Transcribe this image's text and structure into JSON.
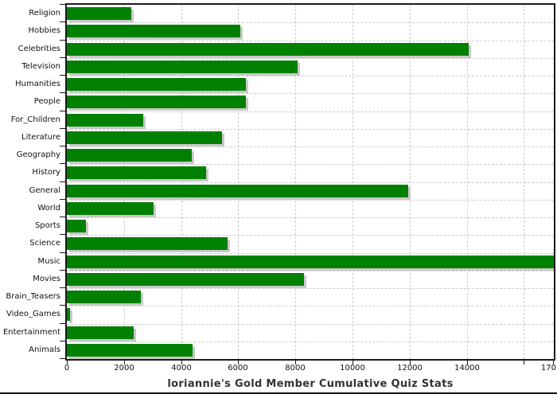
{
  "chart_data": {
    "type": "bar",
    "orientation": "horizontal",
    "title": "loriannie's Gold Member Cumulative Quiz Stats",
    "categories": [
      "Religion",
      "Hobbies",
      "Celebrities",
      "Television",
      "Humanities",
      "People",
      "For_Children",
      "Literature",
      "Geography",
      "History",
      "General",
      "World",
      "Sports",
      "Science",
      "Music",
      "Movies",
      "Brain_Teasers",
      "Video_Games",
      "Entertainment",
      "Animals"
    ],
    "values": [
      2260,
      6080,
      14080,
      8080,
      6280,
      6280,
      2670,
      5440,
      4380,
      4870,
      11950,
      3040,
      670,
      5640,
      17050,
      8310,
      2600,
      110,
      2330,
      4410
    ],
    "xlim": [
      0,
      17050
    ],
    "x_ticks_labeled": [
      0,
      2000,
      4000,
      6000,
      8000,
      10000,
      12000,
      14000
    ],
    "x_ticks_unlabeled": [
      16000
    ],
    "x_axis_end_label": "170",
    "xlabel": "",
    "ylabel": "",
    "legend": "none",
    "grid": "dashed, horizontal at category boundaries and vertical at 2000 intervals",
    "colors": {
      "bar": "#008000",
      "bar_shadow": "#c9c9c9",
      "grid": "#cccccc",
      "plot_border": "#1a1a1a",
      "tick_label": "#111111",
      "title": "#333333",
      "background": "#ffffff",
      "bottom_rule": "#111111"
    }
  }
}
